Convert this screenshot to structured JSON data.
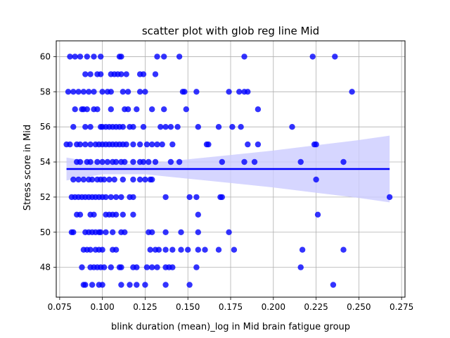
{
  "chart_data": {
    "type": "scatter",
    "title": "scatter plot with glob reg line Mid",
    "xlabel": "blink duration (mean)_log in Mid brain fatigue group",
    "ylabel": "Stress score in Mid",
    "xlim": [
      0.073,
      0.277
    ],
    "ylim": [
      46.3,
      60.9
    ],
    "xticks": [
      0.075,
      0.1,
      0.125,
      0.15,
      0.175,
      0.2,
      0.225,
      0.25,
      0.275
    ],
    "xtick_labels": [
      "0.075",
      "0.100",
      "0.125",
      "0.150",
      "0.175",
      "0.200",
      "0.225",
      "0.250",
      "0.275"
    ],
    "yticks": [
      48,
      50,
      52,
      54,
      56,
      58,
      60
    ],
    "ytick_labels": [
      "48",
      "50",
      "52",
      "54",
      "56",
      "58",
      "60"
    ],
    "grid": true,
    "colors": {
      "points": "#0000ff",
      "line": "#0000ff",
      "band": "#ccccff"
    },
    "regression": {
      "x": [
        0.079,
        0.268
      ],
      "y": [
        53.6,
        53.6
      ]
    },
    "confidence_band": {
      "x": [
        0.079,
        0.1,
        0.125,
        0.15,
        0.175,
        0.2,
        0.225,
        0.25,
        0.268
      ],
      "lower": [
        52.95,
        53.3,
        53.3,
        53.05,
        52.8,
        52.55,
        52.25,
        51.95,
        51.7
      ],
      "upper": [
        54.25,
        53.9,
        53.9,
        54.15,
        54.4,
        54.65,
        54.95,
        55.25,
        55.5
      ]
    },
    "points": [
      {
        "x": 0.081,
        "y": 60
      },
      {
        "x": 0.084,
        "y": 60
      },
      {
        "x": 0.087,
        "y": 60
      },
      {
        "x": 0.091,
        "y": 60
      },
      {
        "x": 0.095,
        "y": 60
      },
      {
        "x": 0.099,
        "y": 60
      },
      {
        "x": 0.11,
        "y": 60
      },
      {
        "x": 0.111,
        "y": 60
      },
      {
        "x": 0.132,
        "y": 60
      },
      {
        "x": 0.136,
        "y": 60
      },
      {
        "x": 0.145,
        "y": 60
      },
      {
        "x": 0.183,
        "y": 60
      },
      {
        "x": 0.223,
        "y": 60
      },
      {
        "x": 0.236,
        "y": 60
      },
      {
        "x": 0.09,
        "y": 59
      },
      {
        "x": 0.093,
        "y": 59
      },
      {
        "x": 0.097,
        "y": 59
      },
      {
        "x": 0.099,
        "y": 59
      },
      {
        "x": 0.105,
        "y": 59
      },
      {
        "x": 0.107,
        "y": 59
      },
      {
        "x": 0.109,
        "y": 59
      },
      {
        "x": 0.111,
        "y": 59
      },
      {
        "x": 0.114,
        "y": 59
      },
      {
        "x": 0.122,
        "y": 59
      },
      {
        "x": 0.124,
        "y": 59
      },
      {
        "x": 0.131,
        "y": 59
      },
      {
        "x": 0.08,
        "y": 58
      },
      {
        "x": 0.083,
        "y": 58
      },
      {
        "x": 0.086,
        "y": 58
      },
      {
        "x": 0.089,
        "y": 58
      },
      {
        "x": 0.092,
        "y": 58
      },
      {
        "x": 0.095,
        "y": 58
      },
      {
        "x": 0.1,
        "y": 58
      },
      {
        "x": 0.103,
        "y": 58
      },
      {
        "x": 0.105,
        "y": 58
      },
      {
        "x": 0.112,
        "y": 58
      },
      {
        "x": 0.115,
        "y": 58
      },
      {
        "x": 0.122,
        "y": 58
      },
      {
        "x": 0.125,
        "y": 58
      },
      {
        "x": 0.147,
        "y": 58
      },
      {
        "x": 0.148,
        "y": 58
      },
      {
        "x": 0.155,
        "y": 58
      },
      {
        "x": 0.174,
        "y": 58
      },
      {
        "x": 0.18,
        "y": 58
      },
      {
        "x": 0.183,
        "y": 58
      },
      {
        "x": 0.185,
        "y": 58
      },
      {
        "x": 0.246,
        "y": 58
      },
      {
        "x": 0.084,
        "y": 57
      },
      {
        "x": 0.088,
        "y": 57
      },
      {
        "x": 0.089,
        "y": 57
      },
      {
        "x": 0.091,
        "y": 57
      },
      {
        "x": 0.095,
        "y": 57
      },
      {
        "x": 0.097,
        "y": 57
      },
      {
        "x": 0.105,
        "y": 57
      },
      {
        "x": 0.113,
        "y": 57
      },
      {
        "x": 0.115,
        "y": 57
      },
      {
        "x": 0.12,
        "y": 57
      },
      {
        "x": 0.129,
        "y": 57
      },
      {
        "x": 0.136,
        "y": 57
      },
      {
        "x": 0.149,
        "y": 57
      },
      {
        "x": 0.191,
        "y": 57
      },
      {
        "x": 0.083,
        "y": 56
      },
      {
        "x": 0.09,
        "y": 56
      },
      {
        "x": 0.093,
        "y": 56
      },
      {
        "x": 0.099,
        "y": 56
      },
      {
        "x": 0.1,
        "y": 56
      },
      {
        "x": 0.102,
        "y": 56
      },
      {
        "x": 0.104,
        "y": 56
      },
      {
        "x": 0.106,
        "y": 56
      },
      {
        "x": 0.108,
        "y": 56
      },
      {
        "x": 0.11,
        "y": 56
      },
      {
        "x": 0.112,
        "y": 56
      },
      {
        "x": 0.116,
        "y": 56
      },
      {
        "x": 0.118,
        "y": 56
      },
      {
        "x": 0.124,
        "y": 56
      },
      {
        "x": 0.134,
        "y": 56
      },
      {
        "x": 0.137,
        "y": 56
      },
      {
        "x": 0.14,
        "y": 56
      },
      {
        "x": 0.144,
        "y": 56
      },
      {
        "x": 0.156,
        "y": 56
      },
      {
        "x": 0.168,
        "y": 56
      },
      {
        "x": 0.176,
        "y": 56
      },
      {
        "x": 0.181,
        "y": 56
      },
      {
        "x": 0.211,
        "y": 56
      },
      {
        "x": 0.079,
        "y": 55
      },
      {
        "x": 0.081,
        "y": 55
      },
      {
        "x": 0.085,
        "y": 55
      },
      {
        "x": 0.087,
        "y": 55
      },
      {
        "x": 0.09,
        "y": 55
      },
      {
        "x": 0.093,
        "y": 55
      },
      {
        "x": 0.096,
        "y": 55
      },
      {
        "x": 0.098,
        "y": 55
      },
      {
        "x": 0.1,
        "y": 55
      },
      {
        "x": 0.102,
        "y": 55
      },
      {
        "x": 0.104,
        "y": 55
      },
      {
        "x": 0.106,
        "y": 55
      },
      {
        "x": 0.108,
        "y": 55
      },
      {
        "x": 0.11,
        "y": 55
      },
      {
        "x": 0.112,
        "y": 55
      },
      {
        "x": 0.114,
        "y": 55
      },
      {
        "x": 0.118,
        "y": 55
      },
      {
        "x": 0.122,
        "y": 55
      },
      {
        "x": 0.126,
        "y": 55
      },
      {
        "x": 0.129,
        "y": 55
      },
      {
        "x": 0.132,
        "y": 55
      },
      {
        "x": 0.135,
        "y": 55
      },
      {
        "x": 0.141,
        "y": 55
      },
      {
        "x": 0.161,
        "y": 55
      },
      {
        "x": 0.162,
        "y": 55
      },
      {
        "x": 0.185,
        "y": 55
      },
      {
        "x": 0.191,
        "y": 55
      },
      {
        "x": 0.224,
        "y": 55
      },
      {
        "x": 0.225,
        "y": 55
      },
      {
        "x": 0.085,
        "y": 54
      },
      {
        "x": 0.087,
        "y": 54
      },
      {
        "x": 0.091,
        "y": 54
      },
      {
        "x": 0.093,
        "y": 54
      },
      {
        "x": 0.097,
        "y": 54
      },
      {
        "x": 0.1,
        "y": 54
      },
      {
        "x": 0.103,
        "y": 54
      },
      {
        "x": 0.106,
        "y": 54
      },
      {
        "x": 0.108,
        "y": 54
      },
      {
        "x": 0.111,
        "y": 54
      },
      {
        "x": 0.113,
        "y": 54
      },
      {
        "x": 0.118,
        "y": 54
      },
      {
        "x": 0.122,
        "y": 54
      },
      {
        "x": 0.124,
        "y": 54
      },
      {
        "x": 0.127,
        "y": 54
      },
      {
        "x": 0.131,
        "y": 54
      },
      {
        "x": 0.14,
        "y": 54
      },
      {
        "x": 0.145,
        "y": 54
      },
      {
        "x": 0.17,
        "y": 54
      },
      {
        "x": 0.183,
        "y": 54
      },
      {
        "x": 0.189,
        "y": 54
      },
      {
        "x": 0.216,
        "y": 54
      },
      {
        "x": 0.241,
        "y": 54
      },
      {
        "x": 0.083,
        "y": 53
      },
      {
        "x": 0.086,
        "y": 53
      },
      {
        "x": 0.089,
        "y": 53
      },
      {
        "x": 0.092,
        "y": 53
      },
      {
        "x": 0.094,
        "y": 53
      },
      {
        "x": 0.097,
        "y": 53
      },
      {
        "x": 0.099,
        "y": 53
      },
      {
        "x": 0.101,
        "y": 53
      },
      {
        "x": 0.104,
        "y": 53
      },
      {
        "x": 0.107,
        "y": 53
      },
      {
        "x": 0.112,
        "y": 53
      },
      {
        "x": 0.118,
        "y": 53
      },
      {
        "x": 0.122,
        "y": 53
      },
      {
        "x": 0.125,
        "y": 53
      },
      {
        "x": 0.128,
        "y": 53
      },
      {
        "x": 0.129,
        "y": 53
      },
      {
        "x": 0.225,
        "y": 53
      },
      {
        "x": 0.082,
        "y": 52
      },
      {
        "x": 0.084,
        "y": 52
      },
      {
        "x": 0.086,
        "y": 52
      },
      {
        "x": 0.088,
        "y": 52
      },
      {
        "x": 0.09,
        "y": 52
      },
      {
        "x": 0.092,
        "y": 52
      },
      {
        "x": 0.094,
        "y": 52
      },
      {
        "x": 0.096,
        "y": 52
      },
      {
        "x": 0.098,
        "y": 52
      },
      {
        "x": 0.1,
        "y": 52
      },
      {
        "x": 0.102,
        "y": 52
      },
      {
        "x": 0.105,
        "y": 52
      },
      {
        "x": 0.108,
        "y": 52
      },
      {
        "x": 0.111,
        "y": 52
      },
      {
        "x": 0.116,
        "y": 52
      },
      {
        "x": 0.118,
        "y": 52
      },
      {
        "x": 0.137,
        "y": 52
      },
      {
        "x": 0.151,
        "y": 52
      },
      {
        "x": 0.155,
        "y": 52
      },
      {
        "x": 0.169,
        "y": 52
      },
      {
        "x": 0.17,
        "y": 52
      },
      {
        "x": 0.268,
        "y": 52
      },
      {
        "x": 0.085,
        "y": 51
      },
      {
        "x": 0.087,
        "y": 51
      },
      {
        "x": 0.093,
        "y": 51
      },
      {
        "x": 0.095,
        "y": 51
      },
      {
        "x": 0.102,
        "y": 51
      },
      {
        "x": 0.104,
        "y": 51
      },
      {
        "x": 0.106,
        "y": 51
      },
      {
        "x": 0.108,
        "y": 51
      },
      {
        "x": 0.112,
        "y": 51
      },
      {
        "x": 0.118,
        "y": 51
      },
      {
        "x": 0.156,
        "y": 51
      },
      {
        "x": 0.226,
        "y": 51
      },
      {
        "x": 0.082,
        "y": 50
      },
      {
        "x": 0.083,
        "y": 50
      },
      {
        "x": 0.09,
        "y": 50
      },
      {
        "x": 0.092,
        "y": 50
      },
      {
        "x": 0.094,
        "y": 50
      },
      {
        "x": 0.096,
        "y": 50
      },
      {
        "x": 0.098,
        "y": 50
      },
      {
        "x": 0.099,
        "y": 50
      },
      {
        "x": 0.102,
        "y": 50
      },
      {
        "x": 0.106,
        "y": 50
      },
      {
        "x": 0.111,
        "y": 50
      },
      {
        "x": 0.113,
        "y": 50
      },
      {
        "x": 0.127,
        "y": 50
      },
      {
        "x": 0.129,
        "y": 50
      },
      {
        "x": 0.137,
        "y": 50
      },
      {
        "x": 0.146,
        "y": 50
      },
      {
        "x": 0.156,
        "y": 50
      },
      {
        "x": 0.174,
        "y": 50
      },
      {
        "x": 0.089,
        "y": 49
      },
      {
        "x": 0.091,
        "y": 49
      },
      {
        "x": 0.093,
        "y": 49
      },
      {
        "x": 0.096,
        "y": 49
      },
      {
        "x": 0.098,
        "y": 49
      },
      {
        "x": 0.1,
        "y": 49
      },
      {
        "x": 0.106,
        "y": 49
      },
      {
        "x": 0.108,
        "y": 49
      },
      {
        "x": 0.128,
        "y": 49
      },
      {
        "x": 0.131,
        "y": 49
      },
      {
        "x": 0.133,
        "y": 49
      },
      {
        "x": 0.137,
        "y": 49
      },
      {
        "x": 0.141,
        "y": 49
      },
      {
        "x": 0.146,
        "y": 49
      },
      {
        "x": 0.15,
        "y": 49
      },
      {
        "x": 0.156,
        "y": 49
      },
      {
        "x": 0.16,
        "y": 49
      },
      {
        "x": 0.168,
        "y": 49
      },
      {
        "x": 0.177,
        "y": 49
      },
      {
        "x": 0.217,
        "y": 49
      },
      {
        "x": 0.241,
        "y": 49
      },
      {
        "x": 0.088,
        "y": 48
      },
      {
        "x": 0.093,
        "y": 48
      },
      {
        "x": 0.095,
        "y": 48
      },
      {
        "x": 0.097,
        "y": 48
      },
      {
        "x": 0.099,
        "y": 48
      },
      {
        "x": 0.101,
        "y": 48
      },
      {
        "x": 0.105,
        "y": 48
      },
      {
        "x": 0.11,
        "y": 48
      },
      {
        "x": 0.111,
        "y": 48
      },
      {
        "x": 0.118,
        "y": 48
      },
      {
        "x": 0.12,
        "y": 48
      },
      {
        "x": 0.126,
        "y": 48
      },
      {
        "x": 0.129,
        "y": 48
      },
      {
        "x": 0.132,
        "y": 48
      },
      {
        "x": 0.137,
        "y": 48
      },
      {
        "x": 0.139,
        "y": 48
      },
      {
        "x": 0.141,
        "y": 48
      },
      {
        "x": 0.155,
        "y": 48
      },
      {
        "x": 0.216,
        "y": 48
      },
      {
        "x": 0.089,
        "y": 47
      },
      {
        "x": 0.09,
        "y": 47
      },
      {
        "x": 0.094,
        "y": 47
      },
      {
        "x": 0.098,
        "y": 47
      },
      {
        "x": 0.1,
        "y": 47
      },
      {
        "x": 0.111,
        "y": 47
      },
      {
        "x": 0.116,
        "y": 47
      },
      {
        "x": 0.12,
        "y": 47
      },
      {
        "x": 0.125,
        "y": 47
      },
      {
        "x": 0.137,
        "y": 47
      },
      {
        "x": 0.151,
        "y": 47
      },
      {
        "x": 0.235,
        "y": 47
      }
    ]
  }
}
